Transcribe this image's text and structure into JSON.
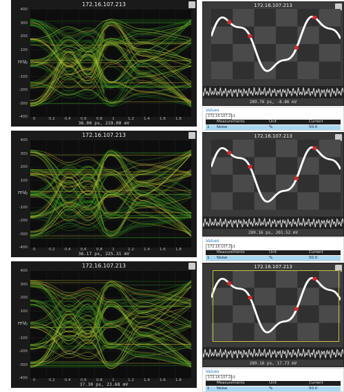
{
  "panels": [
    {
      "eye": {
        "title": "172.16.107.213",
        "readout": "36.00 ps, 219.00 mV",
        "y_ticks": [
          "400",
          "300",
          "200",
          "100",
          "0",
          "-100",
          "-200",
          "-300",
          "-400"
        ],
        "x_ticks": [
          "0",
          "0.2",
          "0.4",
          "0.6",
          "0.8",
          "1",
          "1.2",
          "1.4",
          "1.6",
          "1.8"
        ],
        "y_label": "mV"
      },
      "wave": {
        "title": "172.16.107.213",
        "readout": "289.76 ps, -8.86 mV"
      },
      "measure": {
        "title": "Values",
        "ip": "172.16.107.213",
        "cols": [
          "",
          "Measurements",
          "Unit",
          "Current"
        ],
        "row": [
          "1",
          "Noise",
          "%",
          "50.0"
        ]
      }
    },
    {
      "eye": {
        "title": "172.16.107.213",
        "readout": "36.17 ps, 225.31 mV",
        "y_ticks": [
          "400",
          "300",
          "200",
          "100",
          "0",
          "-100",
          "-200",
          "-300",
          "-400"
        ],
        "x_ticks": [
          "0",
          "0.2",
          "0.4",
          "0.6",
          "0.8",
          "1",
          "1.2",
          "1.4",
          "1.6",
          "1.8"
        ],
        "y_label": "mV"
      },
      "wave": {
        "title": "172.16.107.213",
        "readout": "289.16 ps, 201.52 mV"
      },
      "measure": {
        "title": "Values",
        "ip": "172.16.107.213",
        "cols": [
          "",
          "Measurements",
          "Unit",
          "Current"
        ],
        "row": [
          "1",
          "Noise",
          "%",
          "50.0"
        ]
      }
    },
    {
      "eye": {
        "title": "172.16.107.213",
        "readout": "37.30 ps, 23.68 mV",
        "y_ticks": [
          "400",
          "300",
          "200",
          "100",
          "0",
          "-100",
          "-200",
          "-300",
          "-400"
        ],
        "x_ticks": [
          "0",
          "0.2",
          "0.4",
          "0.6",
          "0.8",
          "1",
          "1.2",
          "1.4",
          "1.6",
          "1.8"
        ],
        "y_label": "mV"
      },
      "wave": {
        "title": "172.16.107.213",
        "readout": "289.16 ps, 17.73 mV"
      },
      "measure": {
        "title": "Values",
        "ip": "172.16.107.213",
        "cols": [
          "",
          "Measurements",
          "Unit",
          "Current"
        ],
        "row": [
          "1",
          "Noise",
          "%",
          "50.0"
        ]
      }
    }
  ],
  "colors": {
    "eye_green": "#2e8b20",
    "eye_yellow": "#d6d23a",
    "wave_trace": "#ffffff",
    "wave_marker": "#d62a2a",
    "selection_row": "#a8d6ef"
  }
}
